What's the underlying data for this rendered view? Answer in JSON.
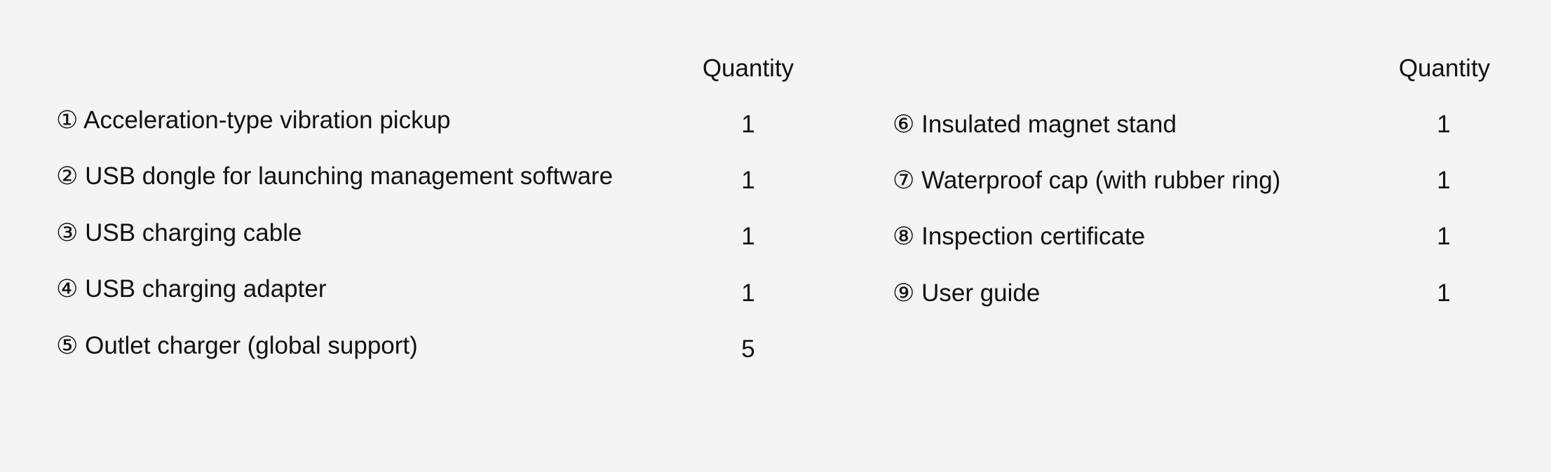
{
  "left": {
    "quantity_header": "Quantity",
    "items": [
      {
        "label": "① Acceleration-type vibration pickup",
        "qty": "1"
      },
      {
        "label": "② USB dongle for launching management software",
        "qty": "1"
      },
      {
        "label": "③ USB charging cable",
        "qty": "1"
      },
      {
        "label": "④ USB charging adapter",
        "qty": "1"
      },
      {
        "label": "⑤ Outlet charger (global support)",
        "qty": "5"
      }
    ]
  },
  "right": {
    "quantity_header": "Quantity",
    "items": [
      {
        "label": "⑥ Insulated magnet stand",
        "qty": "1"
      },
      {
        "label": "⑦ Waterproof cap (with rubber ring)",
        "qty": "1"
      },
      {
        "label": "⑧ Inspection certificate",
        "qty": "1"
      },
      {
        "label": "⑨ User guide",
        "qty": "1"
      }
    ]
  }
}
